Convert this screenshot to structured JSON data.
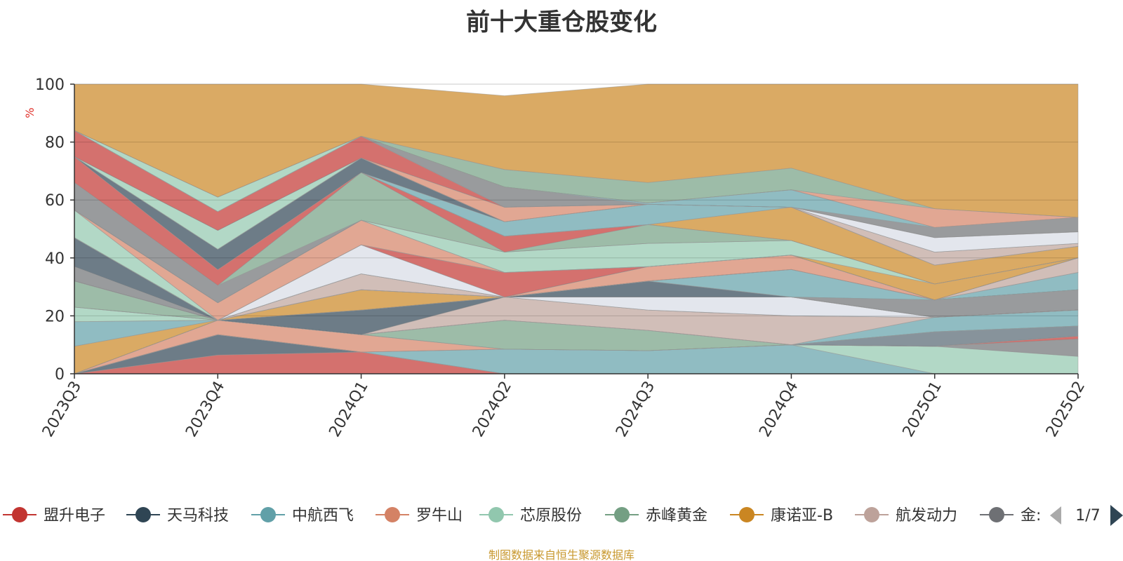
{
  "chart_data": {
    "type": "area",
    "title": "前十大重仓股变化",
    "ylabel": "%",
    "ylim": [
      0,
      100
    ],
    "yticks": [
      0,
      20,
      40,
      60,
      80,
      100
    ],
    "x": [
      "2023Q3",
      "2023Q4",
      "2024Q1",
      "2024Q2",
      "2024Q3",
      "2024Q4",
      "2025Q1",
      "2025Q2"
    ],
    "grid": true,
    "legend_position": "bottom",
    "legend_page": "1/7",
    "legend_truncated_label": "金:",
    "series": [
      {
        "name": "盟升电子",
        "color": "#c23531",
        "values": [
          0,
          6.5,
          7.5,
          0,
          0,
          0,
          0,
          0
        ]
      },
      {
        "name": "天马科技",
        "color": "#2f4554",
        "values": [
          0,
          7,
          6.5,
          0,
          0,
          0,
          0,
          0
        ]
      },
      {
        "name": "中航西飞",
        "color": "#61a0a8",
        "values": [
          9.5,
          0,
          0,
          8.5,
          8,
          10,
          0,
          0
        ]
      },
      {
        "name": "罗牛山",
        "color": "#d48265",
        "values": [
          0,
          5,
          0,
          0,
          0,
          0,
          0,
          0
        ]
      },
      {
        "name": "芯原股份",
        "color": "#91c7ae",
        "values": [
          0,
          0,
          0,
          0,
          0,
          0,
          9.5,
          6
        ]
      },
      {
        "name": "赤峰黄金",
        "color": "#749f83",
        "values": [
          0,
          0,
          0,
          10,
          7,
          0,
          0,
          0
        ]
      },
      {
        "name": "康诺亚-B",
        "color": "#ca8622",
        "values": [
          0,
          0,
          0,
          0,
          0,
          0,
          0,
          0
        ]
      },
      {
        "name": "航发动力",
        "color": "#bda29a",
        "values": [
          0,
          0,
          0,
          8,
          7,
          10,
          0,
          0
        ]
      },
      {
        "name": "金",
        "color": "#6e7074",
        "values": [
          0,
          0,
          0,
          0,
          0,
          0,
          0,
          0
        ]
      }
    ],
    "bands": [
      {
        "color": "#c23531",
        "lower": [
          0,
          0,
          0,
          0,
          0,
          0,
          0,
          0
        ],
        "upper": [
          0,
          6.5,
          7.5,
          0,
          0,
          0,
          0,
          0
        ]
      },
      {
        "color": "#2f4554",
        "lower": [
          0,
          6.5,
          7.5,
          0,
          0,
          0,
          0,
          0
        ],
        "upper": [
          0,
          13.5,
          7.5,
          0,
          0,
          0,
          0,
          0
        ]
      },
      {
        "color": "#61a0a8",
        "lower": [
          0,
          13.5,
          7.5,
          0,
          0,
          0,
          0,
          0
        ],
        "upper": [
          0,
          13.5,
          7.5,
          8.5,
          8,
          10,
          0,
          0
        ]
      },
      {
        "color": "#91c7ae",
        "lower": [
          0,
          13.5,
          7.5,
          8.5,
          8,
          10,
          0,
          0
        ],
        "upper": [
          0,
          13.5,
          7.5,
          8.5,
          8,
          10,
          9.5,
          6
        ]
      },
      {
        "color": "#6e7074",
        "lower": [
          0,
          13.5,
          7.5,
          8.5,
          8,
          10,
          9.5,
          6
        ],
        "upper": [
          0,
          13.5,
          7.5,
          8.5,
          8,
          10,
          9.5,
          12
        ]
      },
      {
        "color": "#d48265",
        "lower": [
          0,
          13.5,
          7.5,
          8.5,
          8,
          10,
          9.5,
          12
        ],
        "upper": [
          0,
          18.5,
          13.5,
          8.5,
          8,
          10,
          9.5,
          12
        ]
      },
      {
        "color": "#c23531",
        "lower": [
          0,
          18.5,
          13.5,
          8.5,
          8,
          10,
          9.5,
          12
        ],
        "upper": [
          0,
          18.5,
          13.5,
          8.5,
          8,
          10,
          9.5,
          13
        ]
      },
      {
        "color": "#749f83",
        "lower": [
          0,
          18.5,
          13.5,
          8.5,
          8,
          10,
          9.5,
          13
        ],
        "upper": [
          0,
          18.5,
          13.5,
          18.5,
          15,
          10,
          9.5,
          13
        ]
      },
      {
        "color": "#546570",
        "lower": [
          0,
          18.5,
          13.5,
          18.5,
          15,
          10,
          9.5,
          13
        ],
        "upper": [
          0,
          18.5,
          13.5,
          18.5,
          15,
          10,
          14.5,
          16.5
        ]
      },
      {
        "color": "#c23531",
        "lower": [
          0,
          18.5,
          13.5,
          18.5,
          15,
          10,
          14.5,
          16.5
        ],
        "upper": [
          0,
          18.5,
          13.5,
          18.5,
          15,
          10,
          14.5,
          16.5
        ]
      },
      {
        "color": "#ca8622",
        "lower": [
          0,
          18.5,
          13.5,
          18.5,
          15,
          10,
          14.5,
          16.5
        ],
        "upper": [
          9.5,
          18.5,
          13.5,
          18.5,
          15,
          10,
          14.5,
          16.5
        ]
      },
      {
        "color": "#61a0a8",
        "lower": [
          9.5,
          18.5,
          13.5,
          18.5,
          15,
          10,
          14.5,
          16.5
        ],
        "upper": [
          18,
          18.5,
          13.5,
          18.5,
          15,
          10,
          19.5,
          22
        ]
      },
      {
        "color": "#bda29a",
        "lower": [
          18,
          18.5,
          13.5,
          18.5,
          15,
          10,
          19.5,
          22
        ],
        "upper": [
          18,
          18.5,
          13.5,
          26.5,
          22,
          20,
          19.5,
          22
        ]
      },
      {
        "color": "#91c7ae",
        "lower": [
          18,
          18.5,
          13.5,
          26.5,
          22,
          20,
          19.5,
          22
        ],
        "upper": [
          23,
          18.5,
          13.5,
          26.5,
          22,
          20,
          19.5,
          22
        ]
      },
      {
        "color": "#2f4554",
        "lower": [
          23,
          18.5,
          13.5,
          26.5,
          22,
          20,
          19.5,
          22
        ],
        "upper": [
          23,
          18.5,
          22,
          26.5,
          22,
          20,
          19.5,
          22
        ]
      },
      {
        "color": "#d7dce6",
        "lower": [
          23,
          18.5,
          22,
          26.5,
          22,
          20,
          19.5,
          22
        ],
        "upper": [
          23,
          18.5,
          22,
          26.5,
          26.5,
          26.5,
          19.5,
          22
        ]
      },
      {
        "color": "#749f83",
        "lower": [
          23,
          18.5,
          22,
          26.5,
          26.5,
          26.5,
          19.5,
          22
        ],
        "upper": [
          32,
          18.5,
          22,
          26.5,
          26.5,
          26.5,
          19.5,
          22
        ]
      },
      {
        "color": "#ca8622",
        "lower": [
          32,
          18.5,
          22,
          26.5,
          26.5,
          26.5,
          19.5,
          22
        ],
        "upper": [
          32,
          18.5,
          29,
          26.5,
          26.5,
          26.5,
          19.5,
          22
        ]
      },
      {
        "color": "#6e7074",
        "lower": [
          32,
          18.5,
          29,
          26.5,
          26.5,
          26.5,
          19.5,
          22
        ],
        "upper": [
          32,
          18.5,
          29,
          26.5,
          26.5,
          26.5,
          25.5,
          29
        ]
      },
      {
        "color": "#2f4554",
        "lower": [
          32,
          18.5,
          29,
          26.5,
          26.5,
          26.5,
          25.5,
          29
        ],
        "upper": [
          32,
          18.5,
          29,
          26.5,
          32,
          26.5,
          25.5,
          29
        ]
      },
      {
        "color": "#61a0a8",
        "lower": [
          32,
          18.5,
          29,
          26.5,
          32,
          26.5,
          25.5,
          29
        ],
        "upper": [
          32,
          18.5,
          29,
          26.5,
          32,
          36,
          25.5,
          29
        ]
      },
      {
        "color": "#6e7074",
        "lower": [
          32,
          18.5,
          29,
          26.5,
          32,
          36,
          25.5,
          29
        ],
        "upper": [
          37,
          18.5,
          29,
          26.5,
          32,
          36,
          25.5,
          29
        ]
      },
      {
        "color": "#bda29a",
        "lower": [
          37,
          18.5,
          29,
          26.5,
          32,
          36,
          25.5,
          29
        ],
        "upper": [
          37,
          18.5,
          34.5,
          26.5,
          32,
          36,
          25.5,
          29
        ]
      },
      {
        "color": "#2f4554",
        "lower": [
          37,
          18.5,
          34.5,
          26.5,
          32,
          36,
          25.5,
          29
        ],
        "upper": [
          47,
          18.5,
          34.5,
          26.5,
          32,
          36,
          25.5,
          29
        ]
      },
      {
        "color": "#61a0a8",
        "lower": [
          47,
          18.5,
          34.5,
          26.5,
          32,
          36,
          25.5,
          29
        ],
        "upper": [
          47,
          18.5,
          34.5,
          26.5,
          32,
          36,
          25.5,
          35
        ]
      },
      {
        "color": "#d48265",
        "lower": [
          47,
          18.5,
          34.5,
          26.5,
          32,
          36,
          25.5,
          35
        ],
        "upper": [
          47,
          18.5,
          34.5,
          26.5,
          37,
          41,
          25.5,
          35
        ]
      },
      {
        "color": "#bda29a",
        "lower": [
          47,
          18.5,
          34.5,
          26.5,
          37,
          41,
          25.5,
          35
        ],
        "upper": [
          47,
          18.5,
          34.5,
          26.5,
          37,
          41,
          25.5,
          40
        ]
      },
      {
        "color": "#d7dce6",
        "lower": [
          47,
          18.5,
          34.5,
          26.5,
          37,
          41,
          25.5,
          40
        ],
        "upper": [
          47,
          18.5,
          44.5,
          26.5,
          37,
          41,
          25.5,
          40
        ]
      },
      {
        "color": "#c23531",
        "lower": [
          47,
          18.5,
          44.5,
          26.5,
          37,
          41,
          25.5,
          40
        ],
        "upper": [
          47,
          18.5,
          44.5,
          35,
          37,
          41,
          25.5,
          40
        ]
      },
      {
        "color": "#91c7ae",
        "lower": [
          47,
          18.5,
          44.5,
          35,
          37,
          41,
          25.5,
          40
        ],
        "upper": [
          56.5,
          18.5,
          44.5,
          35,
          37,
          41,
          25.5,
          40
        ]
      },
      {
        "color": "#d48265",
        "lower": [
          56.5,
          18.5,
          44.5,
          35,
          37,
          41,
          25.5,
          40
        ],
        "upper": [
          56.5,
          24.5,
          53,
          35,
          37,
          41,
          25.5,
          40
        ]
      },
      {
        "color": "#ca8622",
        "lower": [
          56.5,
          24.5,
          53,
          35,
          37,
          41,
          25.5,
          40
        ],
        "upper": [
          56.5,
          24.5,
          53,
          35,
          37,
          41,
          31,
          40
        ]
      },
      {
        "color": "#91c7ae",
        "lower": [
          56.5,
          24.5,
          53,
          35,
          37,
          41,
          31,
          40
        ],
        "upper": [
          56.5,
          24.5,
          53,
          42,
          45,
          46,
          31,
          40
        ]
      },
      {
        "color": "#6e7074",
        "lower": [
          56.5,
          24.5,
          53,
          42,
          45,
          46,
          31,
          40
        ],
        "upper": [
          66,
          30.5,
          53,
          42,
          45,
          46,
          31,
          40
        ]
      },
      {
        "color": "#749f83",
        "lower": [
          66,
          30.5,
          53,
          42,
          45,
          46,
          31,
          40
        ],
        "upper": [
          66,
          30.5,
          69.5,
          42,
          51.5,
          46,
          31,
          40
        ]
      },
      {
        "color": "#c23531",
        "lower": [
          66,
          30.5,
          69.5,
          42,
          51.5,
          46,
          31,
          40
        ],
        "upper": [
          75,
          36,
          69.5,
          47.5,
          51.5,
          46,
          31,
          40
        ]
      },
      {
        "color": "#ca8622",
        "lower": [
          75,
          36,
          69.5,
          47.5,
          51.5,
          46,
          31,
          40
        ],
        "upper": [
          75,
          36,
          69.5,
          47.5,
          51.5,
          57.5,
          37.5,
          44
        ]
      },
      {
        "color": "#61a0a8",
        "lower": [
          75,
          36,
          69.5,
          47.5,
          51.5,
          57.5,
          37.5,
          44
        ],
        "upper": [
          75,
          36,
          69.5,
          52.5,
          58.5,
          57.5,
          37.5,
          44
        ]
      },
      {
        "color": "#2f4554",
        "lower": [
          75,
          36,
          69.5,
          52.5,
          58.5,
          57.5,
          37.5,
          44
        ],
        "upper": [
          75,
          43,
          74.5,
          52.5,
          58.5,
          57.5,
          37.5,
          44
        ]
      },
      {
        "color": "#bda29a",
        "lower": [
          75,
          43,
          74.5,
          52.5,
          58.5,
          57.5,
          37.5,
          44
        ],
        "upper": [
          75,
          43,
          74.5,
          52.5,
          58.5,
          57.5,
          42,
          45
        ]
      },
      {
        "color": "#91c7ae",
        "lower": [
          75,
          43,
          74.5,
          52.5,
          58.5,
          57.5,
          42,
          45
        ],
        "upper": [
          75,
          49.5,
          74.5,
          52.5,
          58.5,
          57.5,
          42,
          45
        ]
      },
      {
        "color": "#d48265",
        "lower": [
          75,
          49.5,
          74.5,
          52.5,
          58.5,
          57.5,
          42,
          45
        ],
        "upper": [
          75,
          49.5,
          74.5,
          57.5,
          58.5,
          57.5,
          42,
          45
        ]
      },
      {
        "color": "#d7dce6",
        "lower": [
          75,
          49.5,
          74.5,
          57.5,
          58.5,
          57.5,
          42,
          45
        ],
        "upper": [
          75,
          49.5,
          74.5,
          57.5,
          58.5,
          57.5,
          47,
          49
        ]
      },
      {
        "color": "#c23531",
        "lower": [
          75,
          49.5,
          74.5,
          57.5,
          58.5,
          57.5,
          47,
          49
        ],
        "upper": [
          84,
          56,
          82,
          57.5,
          58.5,
          57.5,
          47,
          49
        ]
      },
      {
        "color": "#6e7074",
        "lower": [
          84,
          56,
          82,
          57.5,
          58.5,
          57.5,
          47,
          49
        ],
        "upper": [
          84,
          56,
          82,
          64.5,
          58.5,
          57.5,
          50.5,
          54
        ]
      },
      {
        "color": "#61a0a8",
        "lower": [
          84,
          56,
          82,
          64.5,
          58.5,
          57.5,
          50.5,
          54
        ],
        "upper": [
          84,
          56,
          82,
          64.5,
          59,
          63.5,
          50.5,
          54
        ]
      },
      {
        "color": "#91c7ae",
        "lower": [
          84,
          56,
          82,
          64.5,
          59,
          63.5,
          50.5,
          54
        ],
        "upper": [
          84,
          61,
          82,
          64.5,
          59,
          63.5,
          50.5,
          54
        ]
      },
      {
        "color": "#d48265",
        "lower": [
          84,
          61,
          82,
          64.5,
          59,
          63.5,
          50.5,
          54
        ],
        "upper": [
          84,
          61,
          82,
          64.5,
          59,
          63.5,
          57,
          54
        ]
      },
      {
        "color": "#749f83",
        "lower": [
          84,
          61,
          82,
          64.5,
          59,
          63.5,
          57,
          54
        ],
        "upper": [
          84,
          61,
          82,
          70.5,
          66,
          71,
          57,
          54
        ]
      },
      {
        "color": "#ca8622",
        "lower": [
          84,
          61,
          82,
          70.5,
          66,
          71,
          57,
          54
        ],
        "upper": [
          100,
          100,
          100,
          96,
          100,
          100,
          100,
          100
        ]
      }
    ]
  },
  "footer": {
    "source_note": "制图数据来自恒生聚源数据库"
  }
}
